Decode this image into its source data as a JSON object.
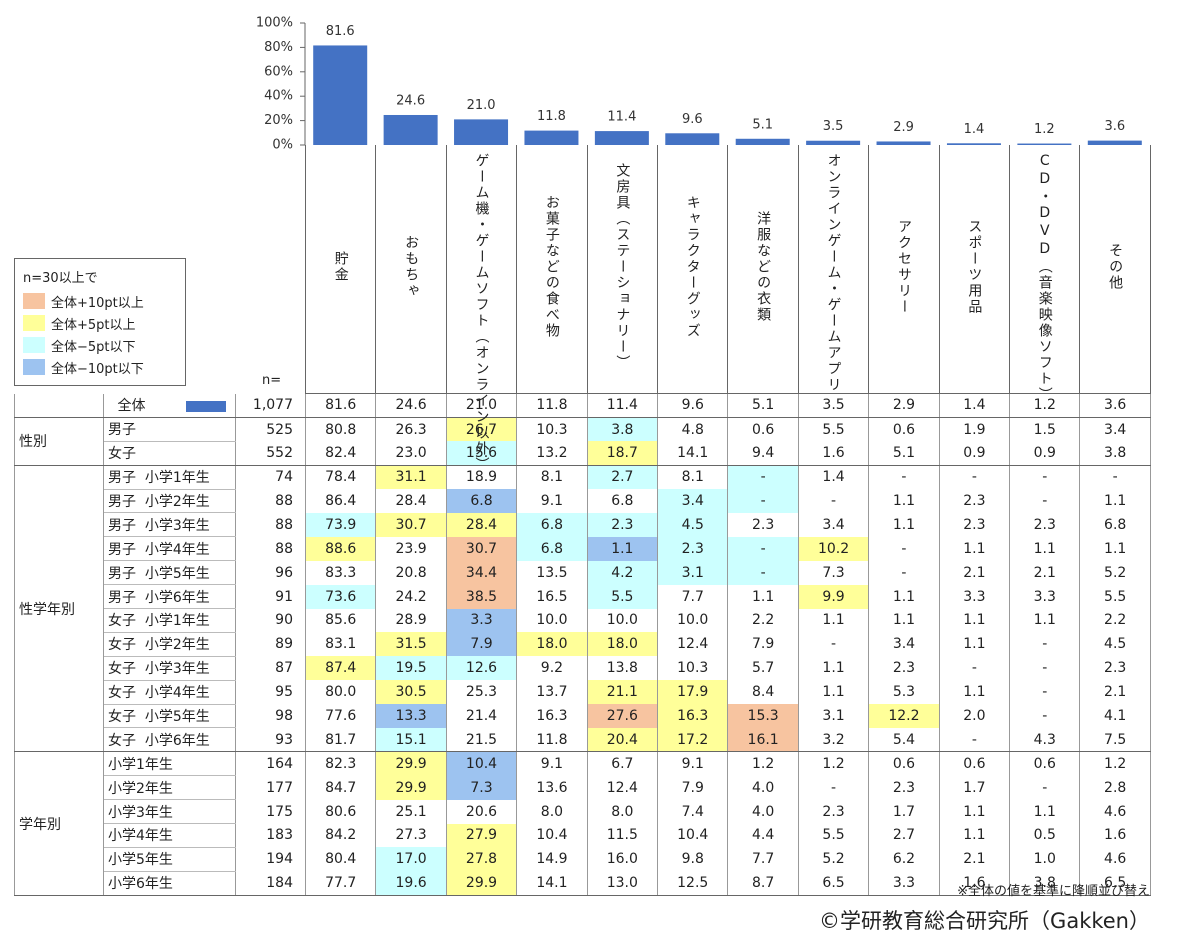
{
  "chart_data": {
    "type": "bar",
    "categories": [
      "貯金",
      "おもちゃ",
      "ゲーム機・ゲームソフト（オンライン以外）",
      "お菓子などの食べ物",
      "文房具（ステーショナリー）",
      "キャラクターグッズ",
      "洋服などの衣類",
      "オンラインゲーム・ゲームアプリ",
      "アクセサリー",
      "スポーツ用品",
      "CD・DVD（音楽映像ソフト）",
      "その他"
    ],
    "values": [
      81.6,
      24.6,
      21.0,
      11.8,
      11.4,
      9.6,
      5.1,
      3.5,
      2.9,
      1.4,
      1.2,
      3.6
    ],
    "value_labels": [
      "81.6",
      "24.6",
      "21.0",
      "11.8",
      "11.4",
      "9.6",
      "5.1",
      "3.5",
      "2.9",
      "1.4",
      "1.2",
      "3.6"
    ],
    "color": "#4472c4",
    "ylim": [
      0,
      100
    ],
    "yticks": [
      {
        "value": 0,
        "label": "0%"
      },
      {
        "value": 20,
        "label": "20%"
      },
      {
        "value": 40,
        "label": "40%"
      },
      {
        "value": 60,
        "label": "60%"
      },
      {
        "value": 80,
        "label": "80%"
      },
      {
        "value": 100,
        "label": "100%"
      }
    ]
  },
  "legend": {
    "title": "n=30以上で",
    "items": [
      {
        "label": "全体+10pt以上",
        "color": "#f7c4a0"
      },
      {
        "label": "全体+5pt以上",
        "color": "#ffff99"
      },
      {
        "label": "全体−5pt以下",
        "color": "#ccffff"
      },
      {
        "label": "全体−10pt以下",
        "color": "#9dc3f0"
      }
    ]
  },
  "table": {
    "n_header": "n=",
    "total": {
      "label": "全体",
      "n": "1,077",
      "cells": [
        "81.6",
        "24.6",
        "21.0",
        "11.8",
        "11.4",
        "9.6",
        "5.1",
        "3.5",
        "2.9",
        "1.4",
        "1.2",
        "3.6"
      ]
    },
    "groups": [
      {
        "label": "性別",
        "rows": [
          {
            "label": "男子",
            "n": "525",
            "cells": [
              "80.8",
              "26.3",
              "26.7",
              "10.3",
              "3.8",
              "4.8",
              "0.6",
              "5.5",
              "0.6",
              "1.9",
              "1.5",
              "3.4"
            ],
            "fills": [
              null,
              null,
              "#ffff99",
              null,
              "#ccffff",
              null,
              null,
              null,
              null,
              null,
              null,
              null
            ]
          },
          {
            "label": "女子",
            "n": "552",
            "cells": [
              "82.4",
              "23.0",
              "15.6",
              "13.2",
              "18.7",
              "14.1",
              "9.4",
              "1.6",
              "5.1",
              "0.9",
              "0.9",
              "3.8"
            ],
            "fills": [
              null,
              null,
              "#ccffff",
              null,
              "#ffff99",
              null,
              null,
              null,
              null,
              null,
              null,
              null
            ]
          }
        ]
      },
      {
        "label": "性学年別",
        "rows": [
          {
            "label": "男子  小学1年生",
            "n": "74",
            "cells": [
              "78.4",
              "31.1",
              "18.9",
              "8.1",
              "2.7",
              "8.1",
              "-",
              "1.4",
              "-",
              "-",
              "-",
              "-"
            ],
            "fills": [
              null,
              "#ffff99",
              null,
              null,
              "#ccffff",
              null,
              "#ccffff",
              null,
              null,
              null,
              null,
              null
            ]
          },
          {
            "label": "男子  小学2年生",
            "n": "88",
            "cells": [
              "86.4",
              "28.4",
              "6.8",
              "9.1",
              "6.8",
              "3.4",
              "-",
              "-",
              "1.1",
              "2.3",
              "-",
              "1.1"
            ],
            "fills": [
              null,
              null,
              "#9dc3f0",
              null,
              null,
              "#ccffff",
              "#ccffff",
              null,
              null,
              null,
              null,
              null
            ]
          },
          {
            "label": "男子  小学3年生",
            "n": "88",
            "cells": [
              "73.9",
              "30.7",
              "28.4",
              "6.8",
              "2.3",
              "4.5",
              "2.3",
              "3.4",
              "1.1",
              "2.3",
              "2.3",
              "6.8"
            ],
            "fills": [
              "#ccffff",
              "#ffff99",
              "#ffff99",
              "#ccffff",
              "#ccffff",
              "#ccffff",
              null,
              null,
              null,
              null,
              null,
              null
            ]
          },
          {
            "label": "男子  小学4年生",
            "n": "88",
            "cells": [
              "88.6",
              "23.9",
              "30.7",
              "6.8",
              "1.1",
              "2.3",
              "-",
              "10.2",
              "-",
              "1.1",
              "1.1",
              "1.1"
            ],
            "fills": [
              "#ffff99",
              null,
              "#f7c4a0",
              "#ccffff",
              "#9dc3f0",
              "#ccffff",
              "#ccffff",
              "#ffff99",
              null,
              null,
              null,
              null
            ]
          },
          {
            "label": "男子  小学5年生",
            "n": "96",
            "cells": [
              "83.3",
              "20.8",
              "34.4",
              "13.5",
              "4.2",
              "3.1",
              "-",
              "7.3",
              "-",
              "2.1",
              "2.1",
              "5.2"
            ],
            "fills": [
              null,
              null,
              "#f7c4a0",
              null,
              "#ccffff",
              "#ccffff",
              "#ccffff",
              null,
              null,
              null,
              null,
              null
            ]
          },
          {
            "label": "男子  小学6年生",
            "n": "91",
            "cells": [
              "73.6",
              "24.2",
              "38.5",
              "16.5",
              "5.5",
              "7.7",
              "1.1",
              "9.9",
              "1.1",
              "3.3",
              "3.3",
              "5.5"
            ],
            "fills": [
              "#ccffff",
              null,
              "#f7c4a0",
              null,
              "#ccffff",
              null,
              null,
              "#ffff99",
              null,
              null,
              null,
              null
            ]
          },
          {
            "label": "女子  小学1年生",
            "n": "90",
            "cells": [
              "85.6",
              "28.9",
              "3.3",
              "10.0",
              "10.0",
              "10.0",
              "2.2",
              "1.1",
              "1.1",
              "1.1",
              "1.1",
              "2.2"
            ],
            "fills": [
              null,
              null,
              "#9dc3f0",
              null,
              null,
              null,
              null,
              null,
              null,
              null,
              null,
              null
            ]
          },
          {
            "label": "女子  小学2年生",
            "n": "89",
            "cells": [
              "83.1",
              "31.5",
              "7.9",
              "18.0",
              "18.0",
              "12.4",
              "7.9",
              "-",
              "3.4",
              "1.1",
              "-",
              "4.5"
            ],
            "fills": [
              null,
              "#ffff99",
              "#9dc3f0",
              "#ffff99",
              "#ffff99",
              null,
              null,
              null,
              null,
              null,
              null,
              null
            ]
          },
          {
            "label": "女子  小学3年生",
            "n": "87",
            "cells": [
              "87.4",
              "19.5",
              "12.6",
              "9.2",
              "13.8",
              "10.3",
              "5.7",
              "1.1",
              "2.3",
              "-",
              "-",
              "2.3"
            ],
            "fills": [
              "#ffff99",
              "#ccffff",
              "#ccffff",
              null,
              null,
              null,
              null,
              null,
              null,
              null,
              null,
              null
            ]
          },
          {
            "label": "女子  小学4年生",
            "n": "95",
            "cells": [
              "80.0",
              "30.5",
              "25.3",
              "13.7",
              "21.1",
              "17.9",
              "8.4",
              "1.1",
              "5.3",
              "1.1",
              "-",
              "2.1"
            ],
            "fills": [
              null,
              "#ffff99",
              null,
              null,
              "#ffff99",
              "#ffff99",
              null,
              null,
              null,
              null,
              null,
              null
            ]
          },
          {
            "label": "女子  小学5年生",
            "n": "98",
            "cells": [
              "77.6",
              "13.3",
              "21.4",
              "16.3",
              "27.6",
              "16.3",
              "15.3",
              "3.1",
              "12.2",
              "2.0",
              "-",
              "4.1"
            ],
            "fills": [
              null,
              "#9dc3f0",
              null,
              null,
              "#f7c4a0",
              "#ffff99",
              "#f7c4a0",
              null,
              "#ffff99",
              null,
              null,
              null
            ]
          },
          {
            "label": "女子  小学6年生",
            "n": "93",
            "cells": [
              "81.7",
              "15.1",
              "21.5",
              "11.8",
              "20.4",
              "17.2",
              "16.1",
              "3.2",
              "5.4",
              "-",
              "4.3",
              "7.5"
            ],
            "fills": [
              null,
              "#ccffff",
              null,
              null,
              "#ffff99",
              "#ffff99",
              "#f7c4a0",
              null,
              null,
              null,
              null,
              null
            ]
          }
        ]
      },
      {
        "label": "学年別",
        "rows": [
          {
            "label": "小学1年生",
            "n": "164",
            "cells": [
              "82.3",
              "29.9",
              "10.4",
              "9.1",
              "6.7",
              "9.1",
              "1.2",
              "1.2",
              "0.6",
              "0.6",
              "0.6",
              "1.2"
            ],
            "fills": [
              null,
              "#ffff99",
              "#9dc3f0",
              null,
              null,
              null,
              null,
              null,
              null,
              null,
              null,
              null
            ]
          },
          {
            "label": "小学2年生",
            "n": "177",
            "cells": [
              "84.7",
              "29.9",
              "7.3",
              "13.6",
              "12.4",
              "7.9",
              "4.0",
              "-",
              "2.3",
              "1.7",
              "-",
              "2.8"
            ],
            "fills": [
              null,
              "#ffff99",
              "#9dc3f0",
              null,
              null,
              null,
              null,
              null,
              null,
              null,
              null,
              null
            ]
          },
          {
            "label": "小学3年生",
            "n": "175",
            "cells": [
              "80.6",
              "25.1",
              "20.6",
              "8.0",
              "8.0",
              "7.4",
              "4.0",
              "2.3",
              "1.7",
              "1.1",
              "1.1",
              "4.6"
            ],
            "fills": [
              null,
              null,
              null,
              null,
              null,
              null,
              null,
              null,
              null,
              null,
              null,
              null
            ]
          },
          {
            "label": "小学4年生",
            "n": "183",
            "cells": [
              "84.2",
              "27.3",
              "27.9",
              "10.4",
              "11.5",
              "10.4",
              "4.4",
              "5.5",
              "2.7",
              "1.1",
              "0.5",
              "1.6"
            ],
            "fills": [
              null,
              null,
              "#ffff99",
              null,
              null,
              null,
              null,
              null,
              null,
              null,
              null,
              null
            ]
          },
          {
            "label": "小学5年生",
            "n": "194",
            "cells": [
              "80.4",
              "17.0",
              "27.8",
              "14.9",
              "16.0",
              "9.8",
              "7.7",
              "5.2",
              "6.2",
              "2.1",
              "1.0",
              "4.6"
            ],
            "fills": [
              null,
              "#ccffff",
              "#ffff99",
              null,
              null,
              null,
              null,
              null,
              null,
              null,
              null,
              null
            ]
          },
          {
            "label": "小学6年生",
            "n": "184",
            "cells": [
              "77.7",
              "19.6",
              "29.9",
              "14.1",
              "13.0",
              "12.5",
              "8.7",
              "6.5",
              "3.3",
              "1.6",
              "3.8",
              "6.5"
            ],
            "fills": [
              null,
              "#ccffff",
              "#ffff99",
              null,
              null,
              null,
              null,
              null,
              null,
              null,
              null,
              null
            ]
          }
        ]
      }
    ]
  },
  "note": "※全体の値を基準に降順並び替え",
  "credit": "©学研教育総合研究所（Gakken）"
}
